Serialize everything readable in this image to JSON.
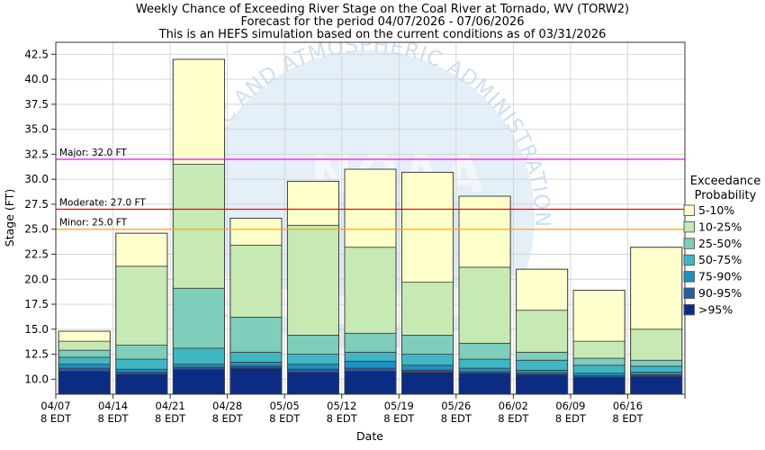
{
  "title": {
    "line1": "Weekly Chance of Exceeding River Stage on the Coal River at Tornado, WV (TORW2)",
    "line2": "Forecast for the period 04/07/2026 - 07/06/2026",
    "line3": "This is an HEFS simulation based on the current conditions as of 03/31/2026"
  },
  "watermark": {
    "acronym": "NOAA",
    "org": "NATIONAL OCEANIC AND ATMOSPHERIC ADMINISTRATION"
  },
  "chart_data": {
    "type": "bar",
    "stacked": true,
    "title": "Weekly Chance of Exceeding River Stage on the Coal River at Tornado, WV (TORW2)",
    "xlabel": "Date",
    "ylabel": "Stage (FT)",
    "ylim": [
      8.5,
      43.7
    ],
    "yticks": [
      10.0,
      12.5,
      15.0,
      17.5,
      20.0,
      22.5,
      25.0,
      27.5,
      30.0,
      32.5,
      35.0,
      37.5,
      40.0,
      42.5
    ],
    "grid": true,
    "tick_sublabel": "8 EDT",
    "categories": [
      "04/07",
      "04/14",
      "04/21",
      "04/28",
      "05/05",
      "05/12",
      "05/19",
      "05/26",
      "06/02",
      "06/09",
      "06/16"
    ],
    "exceedance_levels_pct": [
      5,
      10,
      25,
      50,
      75,
      90,
      95
    ],
    "bars": [
      {
        "date": "04/07",
        "time": "8 EDT",
        "stages": [
          14.8,
          13.8,
          12.9,
          12.2,
          11.5,
          11.1,
          10.8
        ]
      },
      {
        "date": "04/14",
        "time": "8 EDT",
        "stages": [
          24.6,
          21.3,
          13.4,
          12.0,
          11.0,
          10.7,
          10.5
        ]
      },
      {
        "date": "04/21",
        "time": "8 EDT",
        "stages": [
          42.0,
          31.5,
          19.1,
          13.1,
          11.5,
          11.2,
          11.0
        ]
      },
      {
        "date": "04/28",
        "time": "8 EDT",
        "stages": [
          26.1,
          23.4,
          16.2,
          12.7,
          11.7,
          11.3,
          11.1
        ]
      },
      {
        "date": "05/05",
        "time": "8 EDT",
        "stages": [
          29.8,
          25.4,
          14.4,
          12.5,
          11.5,
          11.0,
          10.7
        ]
      },
      {
        "date": "05/12",
        "time": "8 EDT",
        "stages": [
          31.0,
          23.2,
          14.6,
          12.7,
          11.8,
          11.1,
          10.8
        ]
      },
      {
        "date": "05/19",
        "time": "8 EDT",
        "stages": [
          30.7,
          19.7,
          14.4,
          12.5,
          11.4,
          10.9,
          10.7
        ]
      },
      {
        "date": "05/26",
        "time": "8 EDT",
        "stages": [
          28.3,
          21.2,
          13.6,
          12.0,
          11.1,
          10.75,
          10.6
        ]
      },
      {
        "date": "06/02",
        "time": "8 EDT",
        "stages": [
          21.0,
          16.9,
          12.7,
          11.9,
          10.9,
          10.6,
          10.45
        ]
      },
      {
        "date": "06/09",
        "time": "8 EDT",
        "stages": [
          18.9,
          13.8,
          12.1,
          11.4,
          10.6,
          10.35,
          10.2
        ]
      },
      {
        "date": "06/16",
        "time": "8 EDT",
        "stages": [
          23.2,
          15.0,
          11.9,
          11.3,
          10.7,
          10.45,
          10.3
        ]
      }
    ],
    "legend": {
      "title_line1": "Exceedance",
      "title_line2": "Probability",
      "entries": [
        {
          "label": "5-10%",
          "color": "#ffffcc"
        },
        {
          "label": "10-25%",
          "color": "#c7e9b4"
        },
        {
          "label": "25-50%",
          "color": "#7fcdbb"
        },
        {
          "label": "50-75%",
          "color": "#41b6c4"
        },
        {
          "label": "75-90%",
          "color": "#1d91c0"
        },
        {
          "label": "90-95%",
          "color": "#225ea8"
        },
        {
          "label": ">95%",
          "color": "#0c2c84"
        }
      ]
    },
    "thresholds": [
      {
        "label": "Major: 32.0 FT",
        "value": 32.0,
        "color": "#ff00ff"
      },
      {
        "label": "Moderate: 27.0 FT",
        "value": 27.0,
        "color": "#ff0000"
      },
      {
        "label": "Minor: 25.0 FT",
        "value": 25.0,
        "color": "#ffaa00"
      }
    ],
    "bar_outline_color": "#3f3f3f",
    "gridline_color": "#d3d3d3",
    "spine_color": "#333333"
  }
}
